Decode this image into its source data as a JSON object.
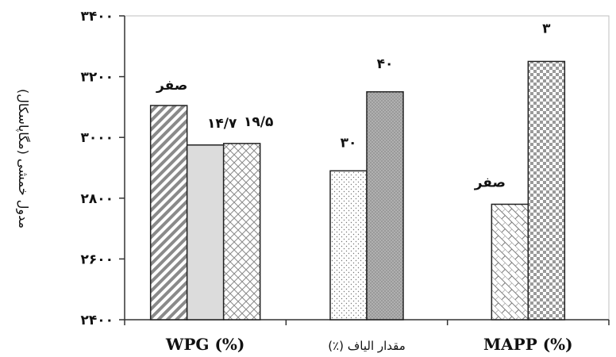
{
  "chart_data": {
    "type": "bar",
    "title": "",
    "ylabel": "مدول خمشی (مگاپاسکال)",
    "xlabel": "",
    "ylim": [
      2400,
      3400
    ],
    "yticks": [
      2400,
      2600,
      2800,
      3000,
      3200,
      3400
    ],
    "ytick_labels": [
      "۲۴۰۰",
      "۲۶۰۰",
      "۲۸۰۰",
      "۳۰۰۰",
      "۳۲۰۰",
      "۳۴۰۰"
    ],
    "grid": false,
    "groups": [
      {
        "label": "WPG (%)",
        "bars": [
          {
            "label": "صفر",
            "value": 3105,
            "pattern": "diagonal-hatch"
          },
          {
            "label": "۱۴/۷",
            "value": 2975,
            "pattern": "solid-light-gray"
          },
          {
            "label": "۱۹/۵",
            "value": 2980,
            "pattern": "crosshatch"
          }
        ]
      },
      {
        "label": "مقدار الیاف (٪)",
        "bars": [
          {
            "label": "۳۰",
            "value": 2890,
            "pattern": "light-dots"
          },
          {
            "label": "۴۰",
            "value": 3150,
            "pattern": "dense-dots-gray"
          }
        ]
      },
      {
        "label": "MAPP (%)",
        "bars": [
          {
            "label": "صفر",
            "value": 2780,
            "pattern": "brick-diagonal"
          },
          {
            "label": "۳",
            "value": 3250,
            "pattern": "checkerboard"
          }
        ]
      }
    ]
  }
}
